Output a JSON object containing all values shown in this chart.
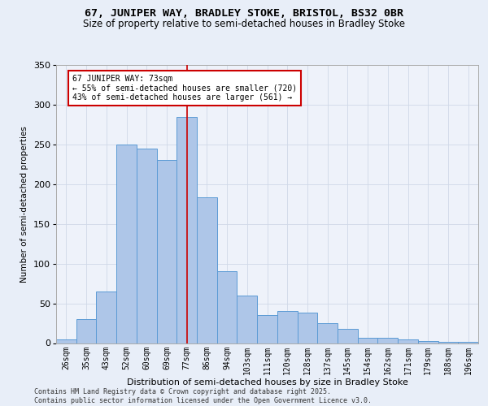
{
  "title_line1": "67, JUNIPER WAY, BRADLEY STOKE, BRISTOL, BS32 0BR",
  "title_line2": "Size of property relative to semi-detached houses in Bradley Stoke",
  "xlabel": "Distribution of semi-detached houses by size in Bradley Stoke",
  "ylabel": "Number of semi-detached properties",
  "categories": [
    "26sqm",
    "35sqm",
    "43sqm",
    "52sqm",
    "60sqm",
    "69sqm",
    "77sqm",
    "86sqm",
    "94sqm",
    "103sqm",
    "111sqm",
    "120sqm",
    "128sqm",
    "137sqm",
    "145sqm",
    "154sqm",
    "162sqm",
    "171sqm",
    "179sqm",
    "188sqm",
    "196sqm"
  ],
  "values": [
    5,
    30,
    65,
    250,
    245,
    230,
    285,
    183,
    90,
    60,
    35,
    40,
    38,
    25,
    18,
    7,
    7,
    5,
    3,
    2,
    2
  ],
  "bar_color": "#aec6e8",
  "bar_edgecolor": "#5b9bd5",
  "property_label": "67 JUNIPER WAY: 73sqm",
  "pct_smaller": 55,
  "pct_larger": 43,
  "n_smaller": 720,
  "n_larger": 561,
  "vline_color": "#cc0000",
  "vline_bin_index": 6,
  "annotation_box_edgecolor": "#cc0000",
  "annotation_box_facecolor": "#ffffff",
  "grid_color": "#d0d8e8",
  "background_color": "#e8eef8",
  "plot_bg_color": "#eef2fa",
  "footer": "Contains HM Land Registry data © Crown copyright and database right 2025.\nContains public sector information licensed under the Open Government Licence v3.0.",
  "ylim": [
    0,
    350
  ],
  "yticks": [
    0,
    50,
    100,
    150,
    200,
    250,
    300,
    350
  ],
  "title1_fontsize": 9.5,
  "title2_fontsize": 8.5,
  "footer_fontsize": 6.0
}
